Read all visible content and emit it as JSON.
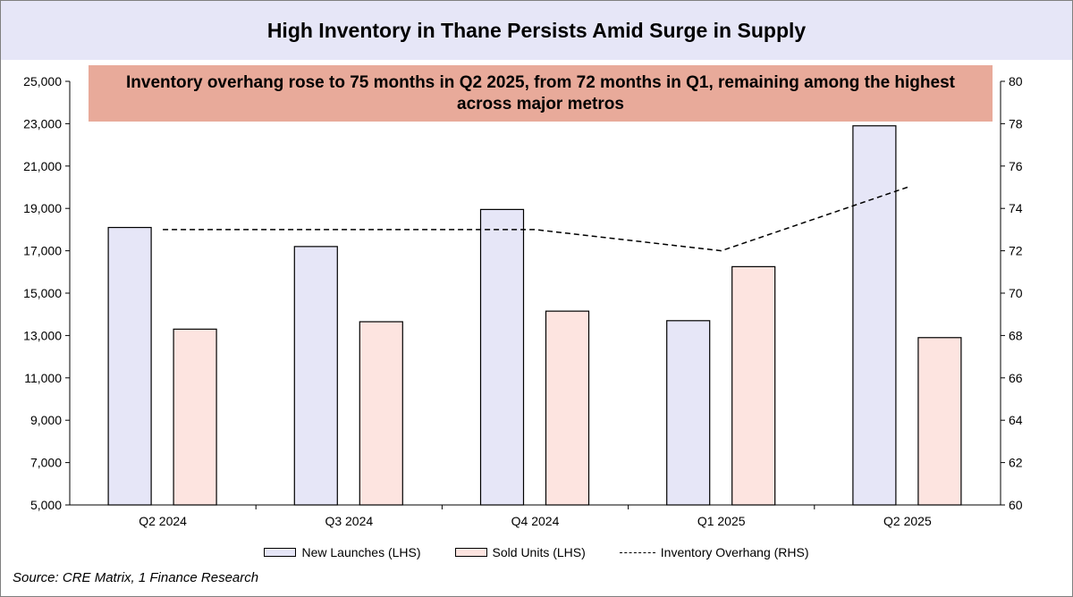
{
  "title": "High Inventory in Thane Persists Amid Surge in Supply",
  "annotation": "Inventory overhang rose to 75 months in Q2 2025, from 72 months in Q1, remaining among the highest across major metros",
  "source": "Source: CRE Matrix, 1 Finance Research",
  "colors": {
    "new_launches": "#e6e6f7",
    "sold_units": "#fde4e0",
    "line": "#000000",
    "title_bg": "#e6e6f7",
    "annotation_bg": "#e8aa9a"
  },
  "chart_data": {
    "type": "bar",
    "categories": [
      "Q2 2024",
      "Q3 2024",
      "Q4 2024",
      "Q1 2025",
      "Q2 2025"
    ],
    "series": [
      {
        "name": "New Launches (LHS)",
        "kind": "bar",
        "axis": "left",
        "values": [
          18100,
          17200,
          18950,
          13700,
          22900
        ]
      },
      {
        "name": "Sold Units (LHS)",
        "kind": "bar",
        "axis": "left",
        "values": [
          13300,
          13650,
          14150,
          16250,
          12900
        ]
      },
      {
        "name": "Inventory Overhang (RHS)",
        "kind": "line",
        "style": "dashed",
        "axis": "right",
        "values": [
          73,
          73,
          73,
          72,
          75
        ]
      }
    ],
    "ylim_left": [
      5000,
      25000
    ],
    "yticks_left": [
      5000,
      7000,
      9000,
      11000,
      13000,
      15000,
      17000,
      19000,
      21000,
      23000,
      25000
    ],
    "ytick_labels_left": [
      "5,000",
      "7,000",
      "9,000",
      "11,000",
      "13,000",
      "15,000",
      "17,000",
      "19,000",
      "21,000",
      "23,000",
      "25,000"
    ],
    "ylim_right": [
      60,
      80
    ],
    "yticks_right": [
      60,
      62,
      64,
      66,
      68,
      70,
      72,
      74,
      76,
      78,
      80
    ],
    "ytick_labels_right": [
      "60",
      "62",
      "64",
      "66",
      "68",
      "70",
      "72",
      "74",
      "76",
      "78",
      "80"
    ],
    "grid": false,
    "legend_position": "bottom"
  },
  "legend": {
    "new_launches": "New Launches (LHS)",
    "sold_units": "Sold Units (LHS)",
    "overhang": "Inventory Overhang (RHS)"
  }
}
